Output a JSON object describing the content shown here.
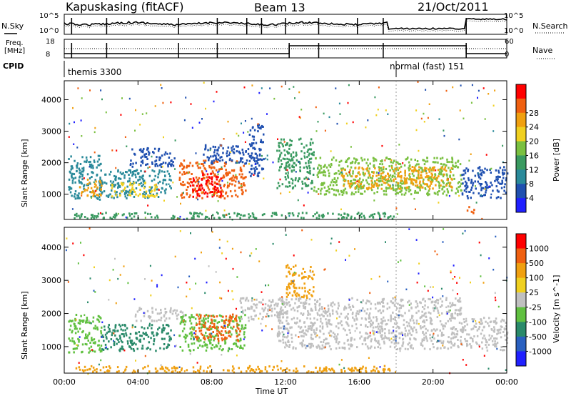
{
  "header": {
    "station": "Kapuskasing (fitACF)",
    "beam": "Beam 13",
    "date": "21/Oct/2011"
  },
  "nsky_panel": {
    "left_label": "N.Sky",
    "right_label": "N.Search",
    "left_ticks": [
      "10^5",
      "10^0"
    ],
    "right_ticks": [
      "10^5",
      "10^0"
    ]
  },
  "freq_panel": {
    "left_label_1": "Freq.",
    "left_label_2": "[MHz]",
    "right_label": "Nave",
    "left_ticks": [
      "18",
      "8"
    ],
    "right_ticks": [
      "60",
      "0"
    ]
  },
  "cpid": {
    "label": "CPID",
    "modes": [
      {
        "text": "themis 3300",
        "start_hour": 0
      },
      {
        "text": "normal (fast) 151",
        "start_hour": 18
      }
    ]
  },
  "chart_data": [
    {
      "type": "heatmap",
      "name": "power",
      "ylabel": "Slant Range [km]",
      "yticks": [
        1000,
        2000,
        3000,
        4000
      ],
      "ylim": [
        200,
        4600
      ],
      "xlim": [
        0,
        24
      ],
      "colorbar": {
        "label": "Power [dB]",
        "ticks": [
          4,
          8,
          12,
          16,
          20,
          24,
          28
        ],
        "colors": [
          "#2020ff",
          "#2050b0",
          "#2a8a9a",
          "#3a9a60",
          "#7ac040",
          "#f0d020",
          "#f0a010",
          "#f06010",
          "#ff0000"
        ]
      },
      "bands": [
        {
          "t0": 0.2,
          "t1": 2.0,
          "r0": 850,
          "r1": 2300,
          "color": "#2a8a9a"
        },
        {
          "t0": 0.8,
          "t1": 2.0,
          "r0": 950,
          "r1": 1500,
          "color": "#f0a010"
        },
        {
          "t0": 2.0,
          "t1": 5.8,
          "r0": 900,
          "r1": 1800,
          "color": "#2a8a9a"
        },
        {
          "t0": 2.5,
          "t1": 5.0,
          "r0": 950,
          "r1": 1400,
          "color": "#f0d020"
        },
        {
          "t0": 3.5,
          "t1": 6.0,
          "r0": 1900,
          "r1": 2500,
          "color": "#2050b0"
        },
        {
          "t0": 6.2,
          "t1": 9.8,
          "r0": 900,
          "r1": 2100,
          "color": "#f06010"
        },
        {
          "t0": 6.8,
          "t1": 8.5,
          "r0": 950,
          "r1": 1700,
          "color": "#ff0000"
        },
        {
          "t0": 7.5,
          "t1": 10.5,
          "r0": 2000,
          "r1": 2600,
          "color": "#2050b0"
        },
        {
          "t0": 10.0,
          "t1": 10.8,
          "r0": 1600,
          "r1": 3300,
          "color": "#2050b0"
        },
        {
          "t0": 11.5,
          "t1": 13.5,
          "r0": 1200,
          "r1": 2800,
          "color": "#3a9a60"
        },
        {
          "t0": 13.5,
          "t1": 21.5,
          "r0": 1000,
          "r1": 2200,
          "color": "#7ac040"
        },
        {
          "t0": 15.0,
          "t1": 21.0,
          "r0": 1200,
          "r1": 1900,
          "color": "#f0a010"
        },
        {
          "t0": 21.5,
          "t1": 24.0,
          "r0": 900,
          "r1": 1900,
          "color": "#2050b0"
        },
        {
          "t0": 0.5,
          "t1": 18.0,
          "r0": 250,
          "r1": 450,
          "color": "#3a9a60"
        },
        {
          "t0": 21.8,
          "t1": 22.2,
          "r0": 350,
          "r1": 650,
          "color": "#f06010"
        }
      ]
    },
    {
      "type": "heatmap",
      "name": "velocity",
      "ylabel": "Slant Range [km]",
      "xlabel": "Time UT",
      "xticks": [
        "00:00",
        "04:00",
        "08:00",
        "12:00",
        "16:00",
        "20:00",
        "00:00"
      ],
      "yticks": [
        1000,
        2000,
        3000,
        4000
      ],
      "ylim": [
        200,
        4600
      ],
      "xlim": [
        0,
        24
      ],
      "colorbar": {
        "label": "Velocity [m s^-1]",
        "ticks": [
          "1000",
          "500",
          "100",
          "25",
          "-25",
          "-100",
          "-500",
          "-1000"
        ],
        "colors": [
          "#2020ff",
          "#2a60c0",
          "#2a8a6a",
          "#60c040",
          "#c0c0c0",
          "#f0d020",
          "#f0a010",
          "#f06010",
          "#ff0000"
        ]
      },
      "bands": [
        {
          "t0": 0.2,
          "t1": 2.0,
          "r0": 850,
          "r1": 2000,
          "color": "#60c040"
        },
        {
          "t0": 2.0,
          "t1": 5.8,
          "r0": 900,
          "r1": 1700,
          "color": "#2a8a6a"
        },
        {
          "t0": 3.8,
          "t1": 6.5,
          "r0": 1800,
          "r1": 2200,
          "color": "#c0c0c0"
        },
        {
          "t0": 6.2,
          "t1": 9.8,
          "r0": 900,
          "r1": 2000,
          "color": "#60c040"
        },
        {
          "t0": 7.0,
          "t1": 9.5,
          "r0": 1200,
          "r1": 2000,
          "color": "#f06010"
        },
        {
          "t0": 9.5,
          "t1": 12.0,
          "r0": 1800,
          "r1": 2500,
          "color": "#c0c0c0"
        },
        {
          "t0": 12.0,
          "t1": 13.5,
          "r0": 2500,
          "r1": 3500,
          "color": "#f0a010"
        },
        {
          "t0": 11.5,
          "t1": 21.5,
          "r0": 950,
          "r1": 2500,
          "color": "#c0c0c0"
        },
        {
          "t0": 21.5,
          "t1": 24.0,
          "r0": 900,
          "r1": 1900,
          "color": "#c0c0c0"
        },
        {
          "t0": 0.5,
          "t1": 18.0,
          "r0": 250,
          "r1": 450,
          "color": "#f0a010"
        }
      ]
    }
  ]
}
